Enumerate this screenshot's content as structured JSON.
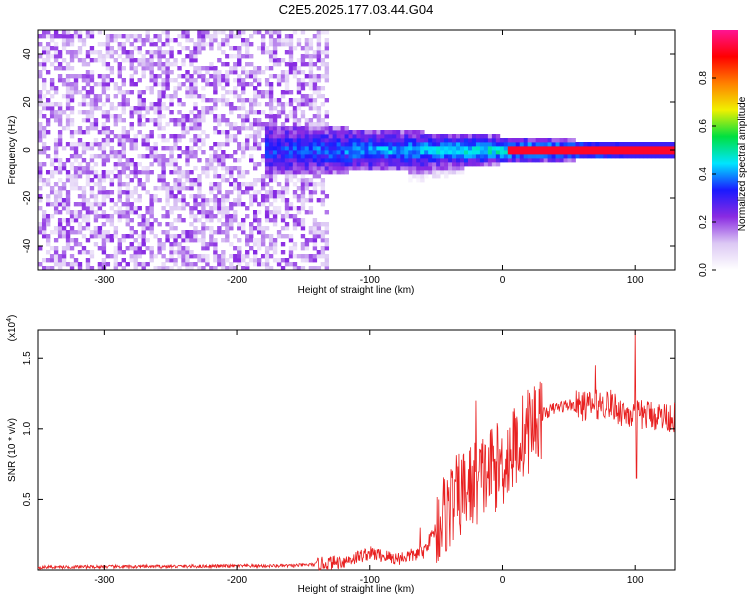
{
  "title": "C2E5.2025.177.03.44.G04",
  "chart_data": [
    {
      "type": "heatmap",
      "xlabel": "Height of straight line (km)",
      "ylabel": "Frequency (Hz)",
      "xlim": [
        -350,
        130
      ],
      "ylim": [
        -50,
        50
      ],
      "xticks": [
        -300,
        -200,
        -100,
        0,
        100
      ],
      "yticks": [
        -40,
        -20,
        0,
        20,
        40
      ],
      "colorbar": {
        "label": "Normalized spectral amplitude",
        "range": [
          0,
          1
        ],
        "ticks": [
          0.0,
          0.2,
          0.4,
          0.6,
          0.8
        ],
        "colors": [
          "#ffffff",
          "#dcc8f4",
          "#8a2be2",
          "#1a1aff",
          "#00e5ff",
          "#00e040",
          "#f0f000",
          "#ff8000",
          "#ff0000",
          "#ff1493"
        ]
      },
      "features": {
        "noise_region_x": [
          -350,
          -130
        ],
        "band_x": [
          -180,
          130
        ],
        "strong_line_x": [
          5,
          130
        ],
        "strong_line_freq": 0
      }
    },
    {
      "type": "line",
      "xlabel": "Height of straight line (km)",
      "ylabel": "SNR (10 * v/v)",
      "yexponent": "(x10",
      "yexponent_power": "4",
      "xlim": [
        -350,
        130
      ],
      "ylim": [
        0,
        1.7
      ],
      "xticks": [
        -300,
        -200,
        -100,
        0,
        100
      ],
      "yticks": [
        0.5,
        1.0,
        1.5
      ],
      "ytick_labels": [
        "0.5",
        "1.0",
        "1.5"
      ],
      "color": "#e82020",
      "series_profile": [
        {
          "x": -350,
          "y": 0.02
        },
        {
          "x": -160,
          "y": 0.03
        },
        {
          "x": -140,
          "y": 0.04
        },
        {
          "x": -120,
          "y": 0.06
        },
        {
          "x": -100,
          "y": 0.12
        },
        {
          "x": -80,
          "y": 0.08
        },
        {
          "x": -60,
          "y": 0.12
        },
        {
          "x": -50,
          "y": 0.3
        },
        {
          "x": -40,
          "y": 0.45
        },
        {
          "x": -30,
          "y": 0.55
        },
        {
          "x": -20,
          "y": 0.62
        },
        {
          "x": -10,
          "y": 0.7
        },
        {
          "x": 0,
          "y": 0.75
        },
        {
          "x": 10,
          "y": 0.88
        },
        {
          "x": 20,
          "y": 1.0
        },
        {
          "x": 30,
          "y": 1.1
        },
        {
          "x": 40,
          "y": 1.15
        },
        {
          "x": 50,
          "y": 1.17
        },
        {
          "x": 60,
          "y": 1.16
        },
        {
          "x": 70,
          "y": 1.17
        },
        {
          "x": 80,
          "y": 1.18
        },
        {
          "x": 90,
          "y": 1.12
        },
        {
          "x": 100,
          "y": 1.1
        },
        {
          "x": 110,
          "y": 1.1
        },
        {
          "x": 130,
          "y": 1.08
        }
      ],
      "spikes": [
        {
          "x": -62,
          "y": 0.3
        },
        {
          "x": -20,
          "y": 1.2
        },
        {
          "x": -8,
          "y": 1.0
        },
        {
          "x": 70,
          "y": 1.45
        },
        {
          "x": 100,
          "y": 1.7
        },
        {
          "x": 101,
          "y": 0.65
        }
      ]
    }
  ]
}
